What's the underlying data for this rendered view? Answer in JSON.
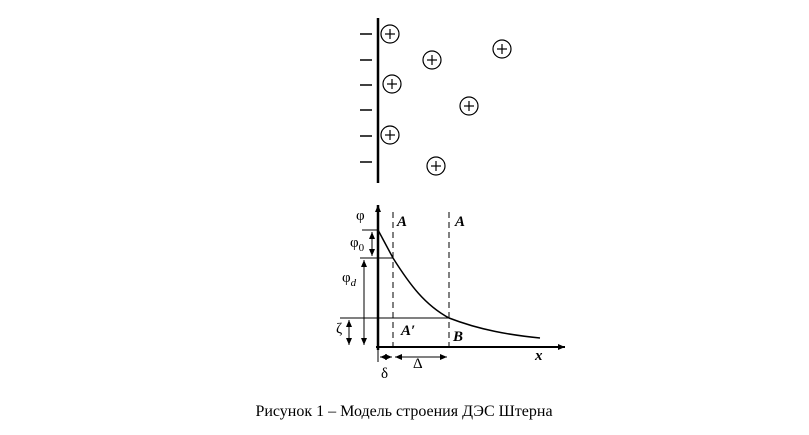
{
  "diagram": {
    "labels": {
      "phi": "φ",
      "a_left": "A",
      "a_right": "A",
      "phi0": {
        "symbol": "φ",
        "subscript": "0"
      },
      "phid": {
        "symbol": "φ",
        "subscript": "d"
      },
      "zeta": "ζ",
      "a_prime": "A′",
      "b": "B",
      "x": "x",
      "delta_big": "Δ",
      "delta_small": "δ"
    },
    "caption": "Рисунок 1 – Модель строения ДЭС Штерна"
  }
}
